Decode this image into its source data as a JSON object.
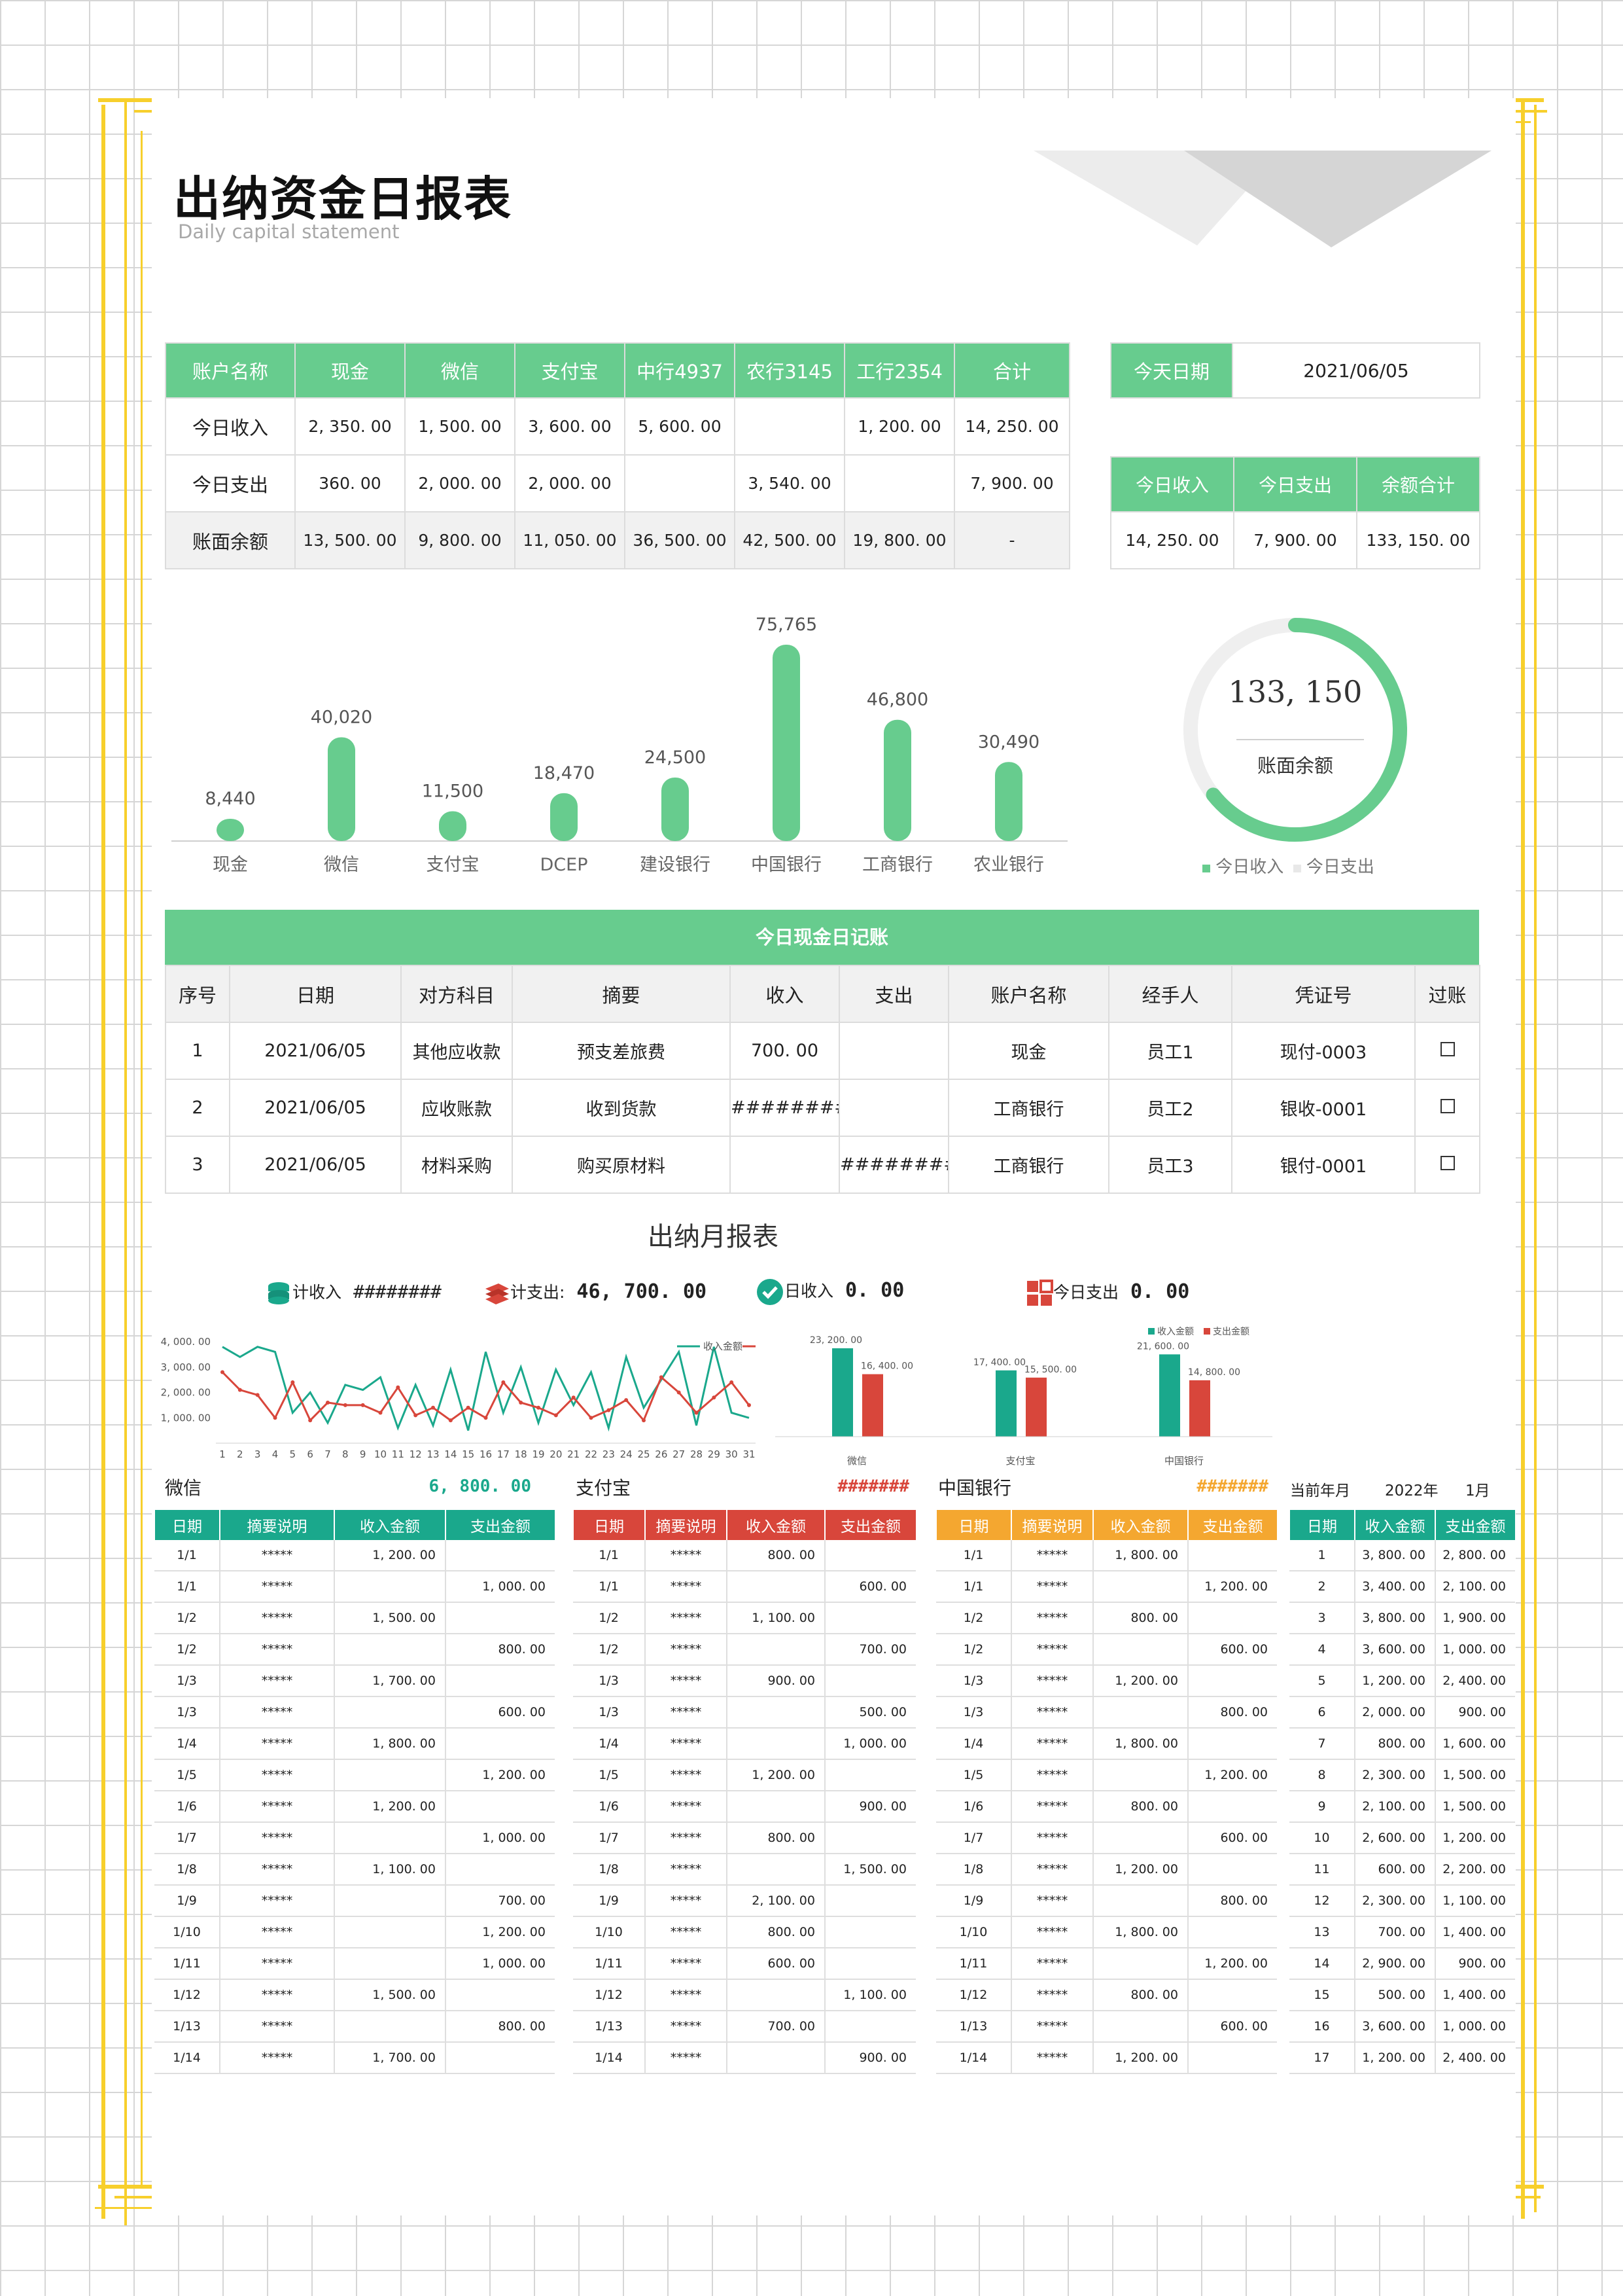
{
  "header": {
    "title": "出纳资金日报表",
    "subtitle": "Daily capital statement"
  },
  "accounts": {
    "headers": [
      "账户名称",
      "现金",
      "微信",
      "支付宝",
      "中行4937",
      "农行3145",
      "工行2354",
      "合计"
    ],
    "rows": [
      [
        "今日收入",
        "2, 350. 00",
        "1, 500. 00",
        "3, 600. 00",
        "5, 600. 00",
        "",
        "1, 200. 00",
        "14, 250. 00"
      ],
      [
        "今日支出",
        "360. 00",
        "2, 000. 00",
        "2, 000. 00",
        "",
        "3, 540. 00",
        "",
        "7, 900. 00"
      ],
      [
        "账面余额",
        "13, 500. 00",
        "9, 800. 00",
        "11, 050. 00",
        "36, 500. 00",
        "42, 500. 00",
        "19, 800. 00",
        "-"
      ]
    ]
  },
  "today": {
    "date_label": "今天日期",
    "date_value": "2021/06/05",
    "headers": [
      "今日收入",
      "今日支出",
      "余额合计"
    ],
    "values": [
      "14, 250. 00",
      "7, 900. 00",
      "133, 150. 00"
    ]
  },
  "colors": {
    "green": "#67cc8e",
    "teal": "#1aa88c",
    "red": "#d8463b",
    "orange": "#f4a730",
    "yellow_frame": "#f7cf2c"
  },
  "chart_data": [
    {
      "type": "bar",
      "categories": [
        "现金",
        "微信",
        "支付宝",
        "DCEP",
        "建设银行",
        "中国银行",
        "工商银行",
        "农业银行"
      ],
      "values": [
        8440,
        40020,
        11500,
        18470,
        24500,
        75765,
        46800,
        30490
      ],
      "data_labels": [
        "8,440",
        "40,020",
        "11,500",
        "18,470",
        "24,500",
        "75,765",
        "46,800",
        "30,490"
      ]
    },
    {
      "type": "pie",
      "center_value": "133, 150",
      "center_label": "账面余额",
      "legend": [
        "今日收入",
        "今日支出"
      ],
      "values": [
        14250,
        7900
      ],
      "legend_placement": "bottom"
    },
    {
      "type": "line",
      "x": [
        1,
        2,
        3,
        4,
        5,
        6,
        7,
        8,
        9,
        10,
        11,
        12,
        13,
        14,
        15,
        16,
        17,
        18,
        19,
        20,
        21,
        22,
        23,
        24,
        25,
        26,
        27,
        28,
        29,
        30,
        31
      ],
      "ylim": [
        0,
        4000
      ],
      "yticks": [
        "4, 000. 00",
        "3, 000. 00",
        "2, 000. 00",
        "1, 000. 00"
      ],
      "legend_placement": "top-right",
      "series": [
        {
          "name": "收入金额",
          "values": [
            3800,
            3400,
            3800,
            3600,
            1200,
            2000,
            800,
            2300,
            2100,
            2600,
            600,
            2300,
            700,
            2900,
            500,
            3600,
            1200,
            3000,
            800,
            2900,
            1500,
            2800,
            600,
            3400,
            1400,
            2500,
            3600,
            700,
            3800,
            1200,
            1000
          ]
        },
        {
          "name": "支出金额",
          "values": [
            2800,
            2100,
            1900,
            1000,
            2400,
            900,
            1600,
            1500,
            1500,
            1200,
            2200,
            1100,
            1400,
            900,
            1400,
            1000,
            2400,
            1600,
            1400,
            1100,
            1800,
            1000,
            1300,
            1700,
            900,
            2600,
            2000,
            1200,
            1800,
            2400,
            1500
          ]
        }
      ]
    },
    {
      "type": "bar",
      "categories": [
        "微信",
        "支付宝",
        "中国银行"
      ],
      "legend_placement": "top-right",
      "series": [
        {
          "name": "收入金额",
          "values": [
            23200,
            17400,
            21600
          ]
        },
        {
          "name": "支出金额",
          "values": [
            16400,
            15500,
            14800
          ]
        }
      ],
      "data_labels": [
        [
          "23, 200. 00",
          "16, 400. 00"
        ],
        [
          "17, 400. 00",
          "15, 500. 00"
        ],
        [
          "21, 600. 00",
          "14, 800. 00"
        ]
      ]
    }
  ],
  "journal": {
    "title": "今日现金日记账",
    "headers": [
      "序号",
      "日期",
      "对方科目",
      "摘要",
      "收入",
      "支出",
      "账户名称",
      "经手人",
      "凭证号",
      "过账"
    ],
    "rows": [
      [
        "1",
        "2021/06/05",
        "其他应收款",
        "预支差旅费",
        "700. 00",
        "",
        "现金",
        "员工1",
        "现付-0003"
      ],
      [
        "2",
        "2021/06/05",
        "应收账款",
        "收到货款",
        "##########",
        "",
        "工商银行",
        "员工2",
        "银收-0001"
      ],
      [
        "3",
        "2021/06/05",
        "材料采购",
        "购买原材料",
        "",
        "##########",
        "工商银行",
        "员工3",
        "银付-0001"
      ]
    ]
  },
  "monthly": {
    "title": "出纳月报表",
    "kpis": [
      {
        "label": "计收入",
        "value": "########"
      },
      {
        "label": "计支出:",
        "value": "46, 700. 00"
      },
      {
        "label": "日收入",
        "value": "0. 00"
      },
      {
        "label": "今日支出",
        "value": "0. 00"
      }
    ]
  },
  "ledgers": {
    "headers": [
      "日期",
      "摘要说明",
      "收入金额",
      "支出金额"
    ],
    "wechat": {
      "name": "微信",
      "total": "6, 800. 00",
      "rows": [
        [
          "1/1",
          "*****",
          "1, 200. 00",
          ""
        ],
        [
          "1/1",
          "*****",
          "",
          "1, 000. 00"
        ],
        [
          "1/2",
          "*****",
          "1, 500. 00",
          ""
        ],
        [
          "1/2",
          "*****",
          "",
          "800. 00"
        ],
        [
          "1/3",
          "*****",
          "1, 700. 00",
          ""
        ],
        [
          "1/3",
          "*****",
          "",
          "600. 00"
        ],
        [
          "1/4",
          "*****",
          "1, 800. 00",
          ""
        ],
        [
          "1/5",
          "*****",
          "",
          "1, 200. 00"
        ],
        [
          "1/6",
          "*****",
          "1, 200. 00",
          ""
        ],
        [
          "1/7",
          "*****",
          "",
          "1, 000. 00"
        ],
        [
          "1/8",
          "*****",
          "1, 100. 00",
          ""
        ],
        [
          "1/9",
          "*****",
          "",
          "700. 00"
        ],
        [
          "1/10",
          "*****",
          "",
          "1, 200. 00"
        ],
        [
          "1/11",
          "*****",
          "",
          "1, 000. 00"
        ],
        [
          "1/12",
          "*****",
          "1, 500. 00",
          ""
        ],
        [
          "1/13",
          "*****",
          "",
          "800. 00"
        ],
        [
          "1/14",
          "*****",
          "1, 700. 00",
          ""
        ]
      ]
    },
    "alipay": {
      "name": "支付宝",
      "total": "#######",
      "rows": [
        [
          "1/1",
          "*****",
          "800. 00",
          ""
        ],
        [
          "1/1",
          "*****",
          "",
          "600. 00"
        ],
        [
          "1/2",
          "*****",
          "1, 100. 00",
          ""
        ],
        [
          "1/2",
          "*****",
          "",
          "700. 00"
        ],
        [
          "1/3",
          "*****",
          "900. 00",
          ""
        ],
        [
          "1/3",
          "*****",
          "",
          "500. 00"
        ],
        [
          "1/4",
          "*****",
          "",
          "1, 000. 00"
        ],
        [
          "1/5",
          "*****",
          "1, 200. 00",
          ""
        ],
        [
          "1/6",
          "*****",
          "",
          "900. 00"
        ],
        [
          "1/7",
          "*****",
          "800. 00",
          ""
        ],
        [
          "1/8",
          "*****",
          "",
          "1, 500. 00"
        ],
        [
          "1/9",
          "*****",
          "2, 100. 00",
          ""
        ],
        [
          "1/10",
          "*****",
          "800. 00",
          ""
        ],
        [
          "1/11",
          "*****",
          "600. 00",
          ""
        ],
        [
          "1/12",
          "*****",
          "",
          "1, 100. 00"
        ],
        [
          "1/13",
          "*****",
          "700. 00",
          ""
        ],
        [
          "1/14",
          "*****",
          "",
          "900. 00"
        ]
      ]
    },
    "boc": {
      "name": "中国银行",
      "total": "#######",
      "rows": [
        [
          "1/1",
          "*****",
          "1, 800. 00",
          ""
        ],
        [
          "1/1",
          "*****",
          "",
          "1, 200. 00"
        ],
        [
          "1/2",
          "*****",
          "800. 00",
          ""
        ],
        [
          "1/2",
          "*****",
          "",
          "600. 00"
        ],
        [
          "1/3",
          "*****",
          "1, 200. 00",
          ""
        ],
        [
          "1/3",
          "*****",
          "",
          "800. 00"
        ],
        [
          "1/4",
          "*****",
          "1, 800. 00",
          ""
        ],
        [
          "1/5",
          "*****",
          "",
          "1, 200. 00"
        ],
        [
          "1/6",
          "*****",
          "800. 00",
          ""
        ],
        [
          "1/7",
          "*****",
          "",
          "600. 00"
        ],
        [
          "1/8",
          "*****",
          "1, 200. 00",
          ""
        ],
        [
          "1/9",
          "*****",
          "",
          "800. 00"
        ],
        [
          "1/10",
          "*****",
          "1, 800. 00",
          ""
        ],
        [
          "1/11",
          "*****",
          "",
          "1, 200. 00"
        ],
        [
          "1/12",
          "*****",
          "800. 00",
          ""
        ],
        [
          "1/13",
          "*****",
          "",
          "600. 00"
        ],
        [
          "1/14",
          "*****",
          "1, 200. 00",
          ""
        ]
      ]
    },
    "summary": {
      "label": "当前年月",
      "year": "2022年",
      "month": "1月",
      "headers": [
        "日期",
        "收入金额",
        "支出金额"
      ],
      "rows": [
        [
          "1",
          "3, 800. 00",
          "2, 800. 00"
        ],
        [
          "2",
          "3, 400. 00",
          "2, 100. 00"
        ],
        [
          "3",
          "3, 800. 00",
          "1, 900. 00"
        ],
        [
          "4",
          "3, 600. 00",
          "1, 000. 00"
        ],
        [
          "5",
          "1, 200. 00",
          "2, 400. 00"
        ],
        [
          "6",
          "2, 000. 00",
          "900. 00"
        ],
        [
          "7",
          "800. 00",
          "1, 600. 00"
        ],
        [
          "8",
          "2, 300. 00",
          "1, 500. 00"
        ],
        [
          "9",
          "2, 100. 00",
          "1, 500. 00"
        ],
        [
          "10",
          "2, 600. 00",
          "1, 200. 00"
        ],
        [
          "11",
          "600. 00",
          "2, 200. 00"
        ],
        [
          "12",
          "2, 300. 00",
          "1, 100. 00"
        ],
        [
          "13",
          "700. 00",
          "1, 400. 00"
        ],
        [
          "14",
          "2, 900. 00",
          "900. 00"
        ],
        [
          "15",
          "500. 00",
          "1, 400. 00"
        ],
        [
          "16",
          "3, 600. 00",
          "1, 000. 00"
        ],
        [
          "17",
          "1, 200. 00",
          "2, 400. 00"
        ]
      ]
    }
  }
}
